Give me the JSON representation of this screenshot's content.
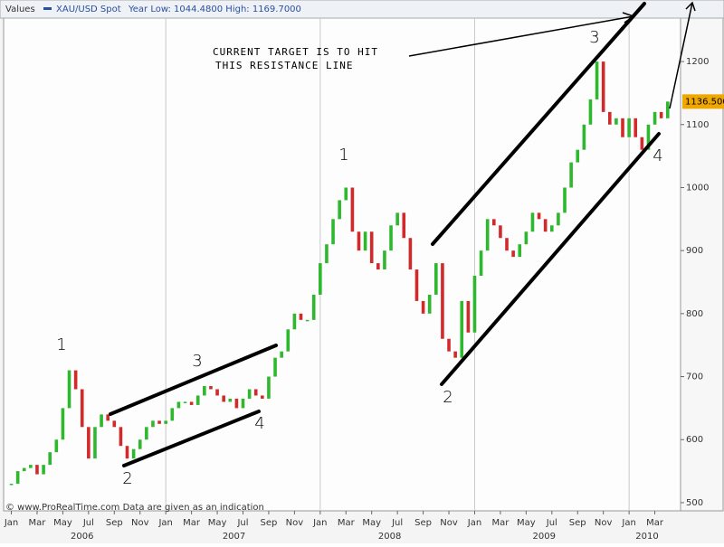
{
  "header": {
    "label": "Values",
    "symbol": "XAU/USD Spot",
    "range": "Year Low: 1044.4800 High: 1169.7000"
  },
  "footer": "© www.ProRealTime.com Data are given as an indication",
  "chart_data": {
    "type": "price",
    "series": [
      {
        "name": "XAU/USD Spot",
        "up_color": "#2db82d",
        "down_color": "#d22a2a",
        "x": [
          0,
          0.5,
          1,
          1.5,
          2,
          2.5,
          3,
          3.5,
          4,
          4.5,
          5,
          5.5,
          6,
          6.5,
          7,
          7.5,
          8,
          8.5,
          9,
          9.5,
          10,
          10.5,
          11,
          11.5,
          12,
          12.5,
          13,
          13.5,
          14,
          14.5,
          15,
          15.5,
          16,
          16.5,
          17,
          17.5,
          18,
          18.5,
          19,
          19.5,
          20,
          20.5,
          21,
          21.5,
          22,
          22.5,
          23,
          23.5,
          24,
          24.5,
          25,
          25.5,
          26,
          26.5,
          27,
          27.5,
          28,
          28.5,
          29,
          29.5,
          30,
          30.5,
          31,
          31.5,
          32,
          32.5,
          33,
          33.5,
          34,
          34.5,
          35,
          35.5,
          36,
          36.5,
          37,
          37.5,
          38,
          38.5,
          39,
          39.5,
          40,
          40.5,
          41,
          41.5,
          42,
          42.5,
          43,
          43.5,
          44,
          44.5,
          45,
          45.5,
          46,
          46.5,
          47,
          47.5,
          48,
          48.5,
          49,
          49.5,
          50,
          50.5,
          51
        ],
        "values": [
          530,
          550,
          555,
          560,
          545,
          560,
          580,
          600,
          650,
          710,
          680,
          620,
          570,
          620,
          640,
          630,
          620,
          590,
          570,
          585,
          600,
          620,
          630,
          625,
          630,
          650,
          660,
          660,
          655,
          670,
          685,
          680,
          670,
          660,
          665,
          650,
          665,
          680,
          670,
          665,
          700,
          730,
          740,
          775,
          800,
          790,
          790,
          830,
          880,
          910,
          950,
          980,
          1000,
          930,
          900,
          930,
          880,
          870,
          900,
          940,
          960,
          920,
          870,
          820,
          800,
          830,
          880,
          760,
          740,
          730,
          820,
          770,
          860,
          900,
          950,
          940,
          920,
          900,
          890,
          910,
          930,
          960,
          950,
          930,
          940,
          960,
          1000,
          1040,
          1060,
          1100,
          1140,
          1200,
          1120,
          1100,
          1110,
          1080,
          1110,
          1080,
          1060,
          1100,
          1120,
          1110,
          1136.5
        ]
      }
    ],
    "last_price": {
      "value": 1136.5,
      "label": "1136.500"
    },
    "ylim": [
      487,
      1269
    ],
    "yticks": [
      500,
      600,
      700,
      800,
      900,
      1000,
      1100,
      1200
    ],
    "xlim": [
      -0.6,
      52
    ],
    "xticks": [
      {
        "value": 0,
        "label": "Jan"
      },
      {
        "value": 2,
        "label": "Mar"
      },
      {
        "value": 4,
        "label": "May"
      },
      {
        "value": 6,
        "label": "Jul"
      },
      {
        "value": 8,
        "label": "Sep"
      },
      {
        "value": 10,
        "label": "Nov"
      },
      {
        "value": 12,
        "label": "Jan"
      },
      {
        "value": 14,
        "label": "Mar"
      },
      {
        "value": 16,
        "label": "May"
      },
      {
        "value": 18,
        "label": "Jul"
      },
      {
        "value": 20,
        "label": "Sep"
      },
      {
        "value": 22,
        "label": "Nov"
      },
      {
        "value": 24,
        "label": "Jan"
      },
      {
        "value": 26,
        "label": "Mar"
      },
      {
        "value": 28,
        "label": "May"
      },
      {
        "value": 30,
        "label": "Jul"
      },
      {
        "value": 32,
        "label": "Sep"
      },
      {
        "value": 34,
        "label": "Nov"
      },
      {
        "value": 36,
        "label": "Jan"
      },
      {
        "value": 38,
        "label": "Mar"
      },
      {
        "value": 40,
        "label": "May"
      },
      {
        "value": 42,
        "label": "Jul"
      },
      {
        "value": 44,
        "label": "Sep"
      },
      {
        "value": 46,
        "label": "Nov"
      },
      {
        "value": 48,
        "label": "Jan"
      },
      {
        "value": 50,
        "label": "Mar"
      }
    ],
    "year_labels": [
      {
        "value": 5.5,
        "label": "2006"
      },
      {
        "value": 17.3,
        "label": "2007"
      },
      {
        "value": 29.4,
        "label": "2008"
      },
      {
        "value": 41.4,
        "label": "2009"
      },
      {
        "value": 49.4,
        "label": "2010"
      }
    ],
    "xgrid": [
      12,
      24,
      36,
      48
    ],
    "annotations": [
      "CURRENT TARGET IS TO HIT",
      "THIS RESISTANCE LINE",
      "1",
      "1",
      "2",
      "2",
      "3",
      "3",
      "4",
      "4"
    ]
  }
}
